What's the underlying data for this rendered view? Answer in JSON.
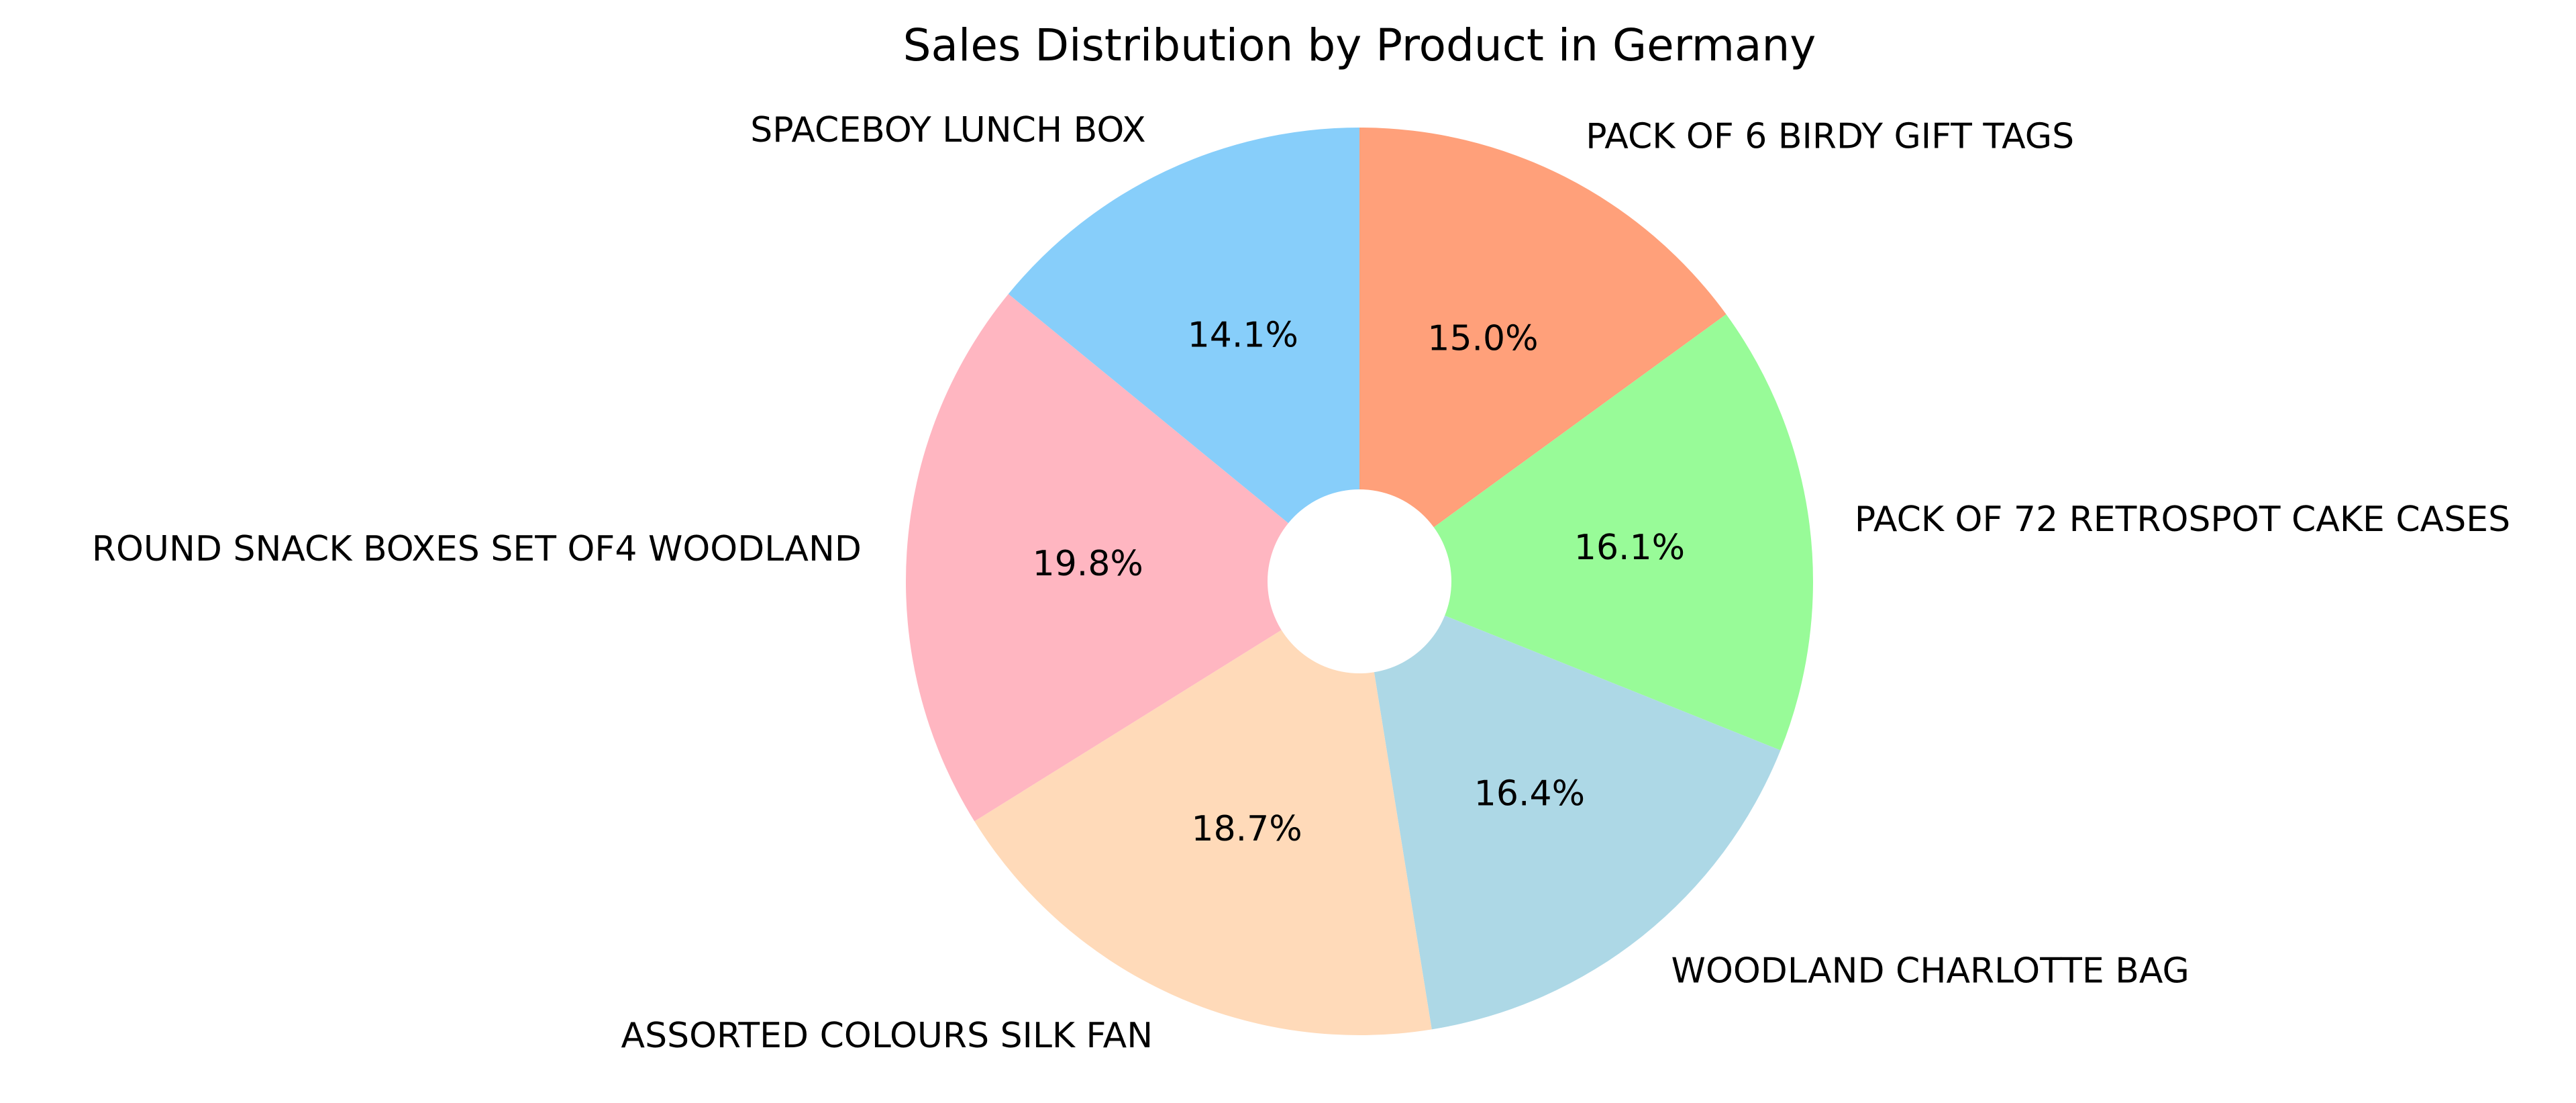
{
  "chart_data": {
    "type": "pie",
    "title": "Sales Distribution by Product in Germany",
    "donut_hole": true,
    "start_angle_deg": 90,
    "direction": "clockwise",
    "slices": [
      {
        "label": "PACK OF 6 BIRDY GIFT TAGS",
        "value": 15.0,
        "pct_label": "15.0%",
        "color": "#ffa07a"
      },
      {
        "label": "PACK OF 72 RETROSPOT CAKE CASES",
        "value": 16.1,
        "pct_label": "16.1%",
        "color": "#98fb98"
      },
      {
        "label": "WOODLAND CHARLOTTE BAG",
        "value": 16.4,
        "pct_label": "16.4%",
        "color": "#add8e6"
      },
      {
        "label": "ASSORTED COLOURS SILK FAN",
        "value": 18.7,
        "pct_label": "18.7%",
        "color": "#ffdab9"
      },
      {
        "label": "ROUND SNACK BOXES SET OF4 WOODLAND",
        "value": 19.8,
        "pct_label": "19.8%",
        "color": "#ffb6c1"
      },
      {
        "label": "SPACEBOY LUNCH BOX",
        "value": 14.1,
        "pct_label": "14.1%",
        "color": "#87cefa"
      }
    ]
  }
}
